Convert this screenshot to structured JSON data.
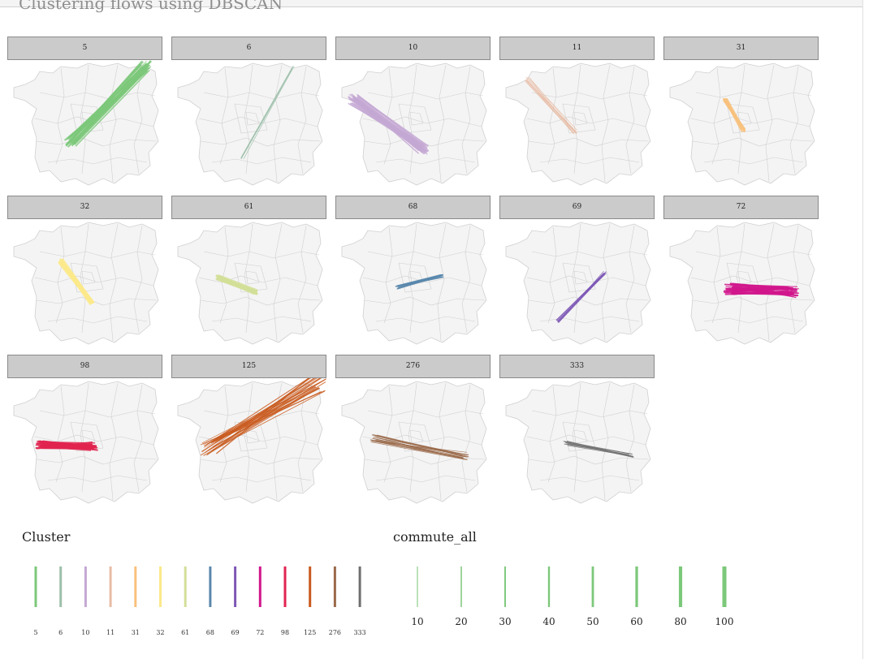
{
  "page": {
    "title": "Clustering flows using DBSCAN"
  },
  "colors": {
    "strip_bg": "#cbcbcb",
    "map_fill": "#f4f4f4",
    "map_border": "#cfcfcf"
  },
  "chart_data": {
    "type": "small-multiples-flow-map",
    "facet_variable": "Cluster",
    "facets": [
      {
        "cluster": "5",
        "color": "#7cc87a"
      },
      {
        "cluster": "6",
        "color": "#9dbfaa"
      },
      {
        "cluster": "10",
        "color": "#c4a8d4"
      },
      {
        "cluster": "11",
        "color": "#e8bca6"
      },
      {
        "cluster": "31",
        "color": "#f8c17c"
      },
      {
        "cluster": "32",
        "color": "#fbe98a"
      },
      {
        "cluster": "61",
        "color": "#d2df98"
      },
      {
        "cluster": "68",
        "color": "#5b88ad"
      },
      {
        "cluster": "69",
        "color": "#7d57b5"
      },
      {
        "cluster": "72",
        "color": "#d1168c"
      },
      {
        "cluster": "98",
        "color": "#e0244f"
      },
      {
        "cluster": "125",
        "color": "#c95a1f"
      },
      {
        "cluster": "276",
        "color": "#9a6a4a"
      },
      {
        "cluster": "333",
        "color": "#6f6f6f"
      }
    ],
    "legends": [
      {
        "title": "Cluster",
        "entries": [
          "5",
          "6",
          "10",
          "11",
          "31",
          "32",
          "61",
          "68",
          "69",
          "72",
          "98",
          "125",
          "276",
          "333"
        ]
      },
      {
        "title": "commute_all",
        "entries": [
          "10",
          "20",
          "30",
          "40",
          "50",
          "60",
          "80",
          "100"
        ],
        "legend_color": "#7cc87a"
      }
    ]
  }
}
